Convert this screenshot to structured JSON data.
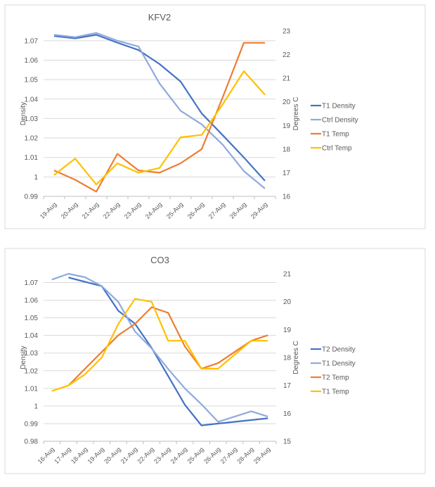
{
  "chart_data": [
    {
      "type": "line",
      "title": "KFV2",
      "ylabel": "Density",
      "y2label": "Degrees C",
      "categories": [
        "19-Aug",
        "20-Aug",
        "21-Aug",
        "22-Aug",
        "23-Aug",
        "24-Aug",
        "25-Aug",
        "26-Aug",
        "27-Aug",
        "28-Aug",
        "29-Aug"
      ],
      "ylim": [
        0.99,
        1.075
      ],
      "yticks": [
        "0.99",
        "1",
        "1.01",
        "1.02",
        "1.03",
        "1.04",
        "1.05",
        "1.06",
        "1.07"
      ],
      "y2lim": [
        16,
        23
      ],
      "y2ticks": [
        "16",
        "17",
        "18",
        "19",
        "20",
        "21",
        "22",
        "23"
      ],
      "grid": true,
      "legend": "right",
      "series": [
        {
          "name": "T1 Density",
          "axis": "left",
          "color": "#4472C4",
          "values": [
            1.0724,
            1.0712,
            1.073,
            1.069,
            1.0652,
            1.058,
            1.049,
            1.0326,
            1.0214,
            1.01,
            0.998
          ]
        },
        {
          "name": "Ctrl Density",
          "axis": "left",
          "color": "#8FAADC",
          "values": [
            1.073,
            1.0718,
            1.074,
            1.07,
            1.067,
            1.048,
            1.034,
            1.027,
            1.0165,
            1.003,
            0.994
          ]
        },
        {
          "name": "T1 Temp",
          "axis": "right",
          "color": "#ED7D31",
          "values": [
            17.1,
            16.7,
            16.2,
            17.8,
            17.1,
            17.0,
            17.4,
            18.0,
            20.2,
            22.5,
            22.5
          ]
        },
        {
          "name": "Ctrl Temp",
          "axis": "right",
          "color": "#FFC000",
          "values": [
            16.9,
            17.6,
            16.5,
            17.4,
            17.0,
            17.2,
            18.5,
            18.6,
            19.9,
            21.3,
            20.3
          ]
        }
      ]
    },
    {
      "type": "line",
      "title": "CO3",
      "ylabel": "Density",
      "y2label": "Degrees C",
      "categories": [
        "16-Aug",
        "17-Aug",
        "18-Aug",
        "19-Aug",
        "20-Aug",
        "21-Aug",
        "22-Aug",
        "23-Aug",
        "24-Aug",
        "25-Aug",
        "26-Aug",
        "27-Aug",
        "28-Aug",
        "29-Aug"
      ],
      "ylim": [
        0.98,
        1.075
      ],
      "yticks": [
        "0.98",
        "0.99",
        "1",
        "1.01",
        "1.02",
        "1.03",
        "1.04",
        "1.05",
        "1.06",
        "1.07"
      ],
      "y2lim": [
        15,
        21
      ],
      "y2ticks": [
        "15",
        "16",
        "17",
        "18",
        "19",
        "20",
        "21"
      ],
      "grid": true,
      "legend": "right",
      "series": [
        {
          "name": "T2 Density",
          "axis": "left",
          "color": "#4472C4",
          "values": [
            null,
            1.0729,
            1.0704,
            1.068,
            1.054,
            1.0467,
            1.033,
            1.017,
            1.0007,
            0.989,
            0.99,
            0.991,
            0.992,
            0.993
          ]
        },
        {
          "name": "T1 Density",
          "axis": "left",
          "color": "#8FAADC",
          "values": [
            1.0717,
            1.075,
            1.073,
            1.068,
            1.059,
            1.0423,
            1.0327,
            1.021,
            1.01,
            1.001,
            0.991,
            0.994,
            0.997,
            0.994
          ]
        },
        {
          "name": "T2 Temp",
          "axis": "right",
          "color": "#ED7D31",
          "values": [
            null,
            17.0,
            17.6,
            18.2,
            18.8,
            19.2,
            19.8,
            19.6,
            18.4,
            17.6,
            17.8,
            18.2,
            18.6,
            18.8
          ]
        },
        {
          "name": "T1 Temp",
          "axis": "right",
          "color": "#FFC000",
          "values": [
            16.8,
            17.0,
            17.4,
            18.0,
            19.2,
            20.1,
            20.0,
            18.6,
            18.6,
            17.6,
            17.6,
            18.1,
            18.6,
            18.6
          ]
        }
      ]
    }
  ]
}
